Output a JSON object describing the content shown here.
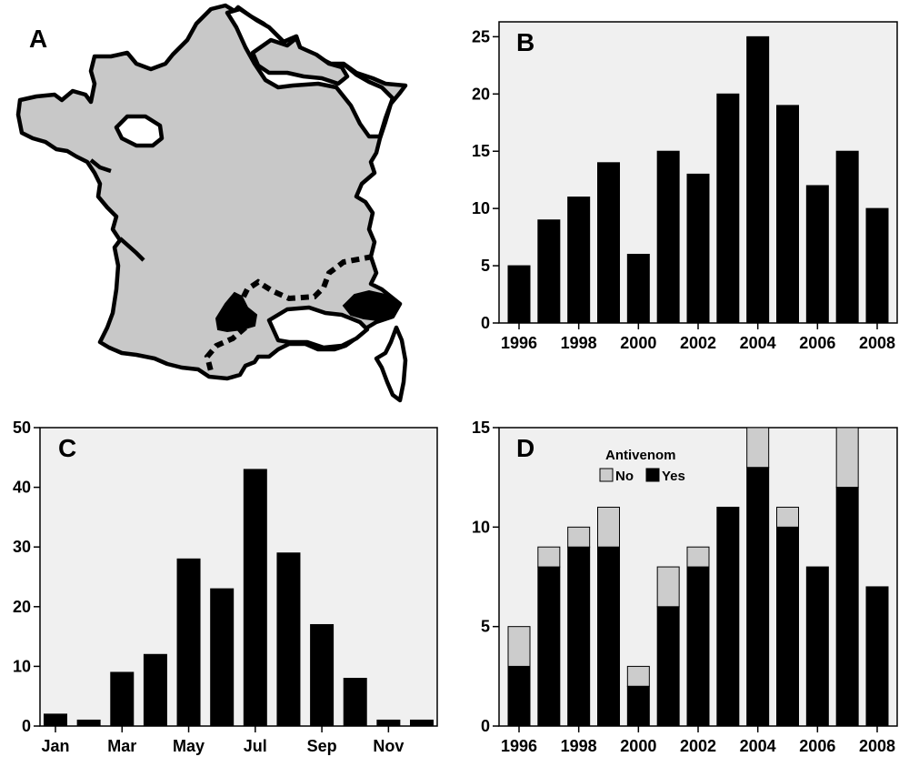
{
  "panels": {
    "A": {
      "letter": "A"
    },
    "B": {
      "letter": "B"
    },
    "C": {
      "letter": "C"
    },
    "D": {
      "letter": "D"
    }
  },
  "colors": {
    "bar": "#000000",
    "bar_no": "#cccccc",
    "plot_bg": "#f0f0f0",
    "map_fill": "#c8c8c8",
    "map_stroke": "#000000"
  },
  "chart_data": [
    {
      "panel": "B",
      "type": "bar",
      "x": [
        1996,
        1997,
        1998,
        1999,
        2000,
        2001,
        2002,
        2003,
        2004,
        2005,
        2006,
        2007,
        2008
      ],
      "values": [
        5,
        9,
        11,
        14,
        6,
        15,
        13,
        20,
        25,
        19,
        12,
        15,
        10
      ],
      "x_tick_labels": [
        "1996",
        "1998",
        "2000",
        "2002",
        "2004",
        "2006",
        "2008"
      ],
      "y_ticks": [
        0,
        5,
        10,
        15,
        20,
        25
      ],
      "ylim": [
        0,
        26.3
      ],
      "grid": false
    },
    {
      "panel": "C",
      "type": "bar",
      "categories": [
        "Jan",
        "Feb",
        "Mar",
        "Apr",
        "May",
        "Jun",
        "Jul",
        "Aug",
        "Sep",
        "Oct",
        "Nov",
        "Dec"
      ],
      "values": [
        2,
        1,
        9,
        12,
        28,
        23,
        43,
        29,
        17,
        8,
        1,
        1
      ],
      "x_tick_labels": [
        "Jan",
        "Mar",
        "May",
        "Jul",
        "Sep",
        "Nov"
      ],
      "y_ticks": [
        0,
        10,
        20,
        30,
        40,
        50
      ],
      "ylim": [
        0,
        50
      ],
      "grid": false
    },
    {
      "panel": "D",
      "type": "bar",
      "stacked": true,
      "x": [
        1996,
        1997,
        1998,
        1999,
        2000,
        2001,
        2002,
        2003,
        2004,
        2005,
        2006,
        2007,
        2008
      ],
      "legend_title": "Antivenom",
      "legend_placement": "top-left",
      "series": [
        {
          "name": "Yes",
          "values": [
            3,
            8,
            9,
            9,
            2,
            6,
            8,
            11,
            13,
            10,
            8,
            12,
            7
          ]
        },
        {
          "name": "No",
          "values": [
            2,
            1,
            1,
            2,
            1,
            2,
            1,
            0,
            2,
            1,
            0,
            3,
            0
          ]
        }
      ],
      "x_tick_labels": [
        "1996",
        "1998",
        "2000",
        "2002",
        "2004",
        "2006",
        "2008"
      ],
      "y_ticks": [
        0,
        5,
        10,
        15
      ],
      "ylim": [
        0,
        15
      ],
      "grid": false
    }
  ]
}
